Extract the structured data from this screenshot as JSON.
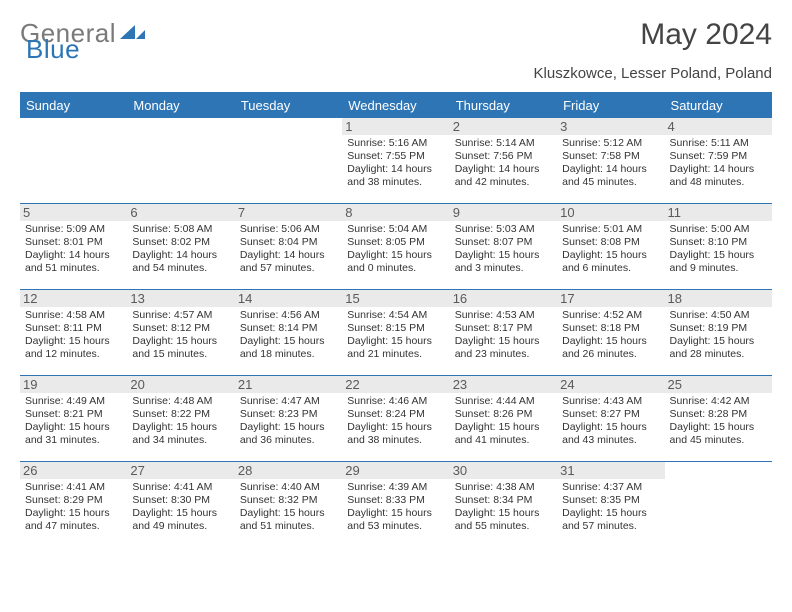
{
  "logo": {
    "text1": "General",
    "text2": "Blue"
  },
  "title": "May 2024",
  "location": "Kluszkowce, Lesser Poland, Poland",
  "colors": {
    "header_bg": "#2e75b6",
    "header_text": "#ffffff",
    "row_border": "#2e75b6",
    "daynum_bg": "#eaeaea",
    "body_text": "#333333",
    "title_text": "#444444"
  },
  "weekdays": [
    "Sunday",
    "Monday",
    "Tuesday",
    "Wednesday",
    "Thursday",
    "Friday",
    "Saturday"
  ],
  "weeks": [
    [
      null,
      null,
      null,
      {
        "n": "1",
        "sr": "5:16 AM",
        "ss": "7:55 PM",
        "dh": "14",
        "dm": "38"
      },
      {
        "n": "2",
        "sr": "5:14 AM",
        "ss": "7:56 PM",
        "dh": "14",
        "dm": "42"
      },
      {
        "n": "3",
        "sr": "5:12 AM",
        "ss": "7:58 PM",
        "dh": "14",
        "dm": "45"
      },
      {
        "n": "4",
        "sr": "5:11 AM",
        "ss": "7:59 PM",
        "dh": "14",
        "dm": "48"
      }
    ],
    [
      {
        "n": "5",
        "sr": "5:09 AM",
        "ss": "8:01 PM",
        "dh": "14",
        "dm": "51"
      },
      {
        "n": "6",
        "sr": "5:08 AM",
        "ss": "8:02 PM",
        "dh": "14",
        "dm": "54"
      },
      {
        "n": "7",
        "sr": "5:06 AM",
        "ss": "8:04 PM",
        "dh": "14",
        "dm": "57"
      },
      {
        "n": "8",
        "sr": "5:04 AM",
        "ss": "8:05 PM",
        "dh": "15",
        "dm": "0"
      },
      {
        "n": "9",
        "sr": "5:03 AM",
        "ss": "8:07 PM",
        "dh": "15",
        "dm": "3"
      },
      {
        "n": "10",
        "sr": "5:01 AM",
        "ss": "8:08 PM",
        "dh": "15",
        "dm": "6"
      },
      {
        "n": "11",
        "sr": "5:00 AM",
        "ss": "8:10 PM",
        "dh": "15",
        "dm": "9"
      }
    ],
    [
      {
        "n": "12",
        "sr": "4:58 AM",
        "ss": "8:11 PM",
        "dh": "15",
        "dm": "12"
      },
      {
        "n": "13",
        "sr": "4:57 AM",
        "ss": "8:12 PM",
        "dh": "15",
        "dm": "15"
      },
      {
        "n": "14",
        "sr": "4:56 AM",
        "ss": "8:14 PM",
        "dh": "15",
        "dm": "18"
      },
      {
        "n": "15",
        "sr": "4:54 AM",
        "ss": "8:15 PM",
        "dh": "15",
        "dm": "21"
      },
      {
        "n": "16",
        "sr": "4:53 AM",
        "ss": "8:17 PM",
        "dh": "15",
        "dm": "23"
      },
      {
        "n": "17",
        "sr": "4:52 AM",
        "ss": "8:18 PM",
        "dh": "15",
        "dm": "26"
      },
      {
        "n": "18",
        "sr": "4:50 AM",
        "ss": "8:19 PM",
        "dh": "15",
        "dm": "28"
      }
    ],
    [
      {
        "n": "19",
        "sr": "4:49 AM",
        "ss": "8:21 PM",
        "dh": "15",
        "dm": "31"
      },
      {
        "n": "20",
        "sr": "4:48 AM",
        "ss": "8:22 PM",
        "dh": "15",
        "dm": "34"
      },
      {
        "n": "21",
        "sr": "4:47 AM",
        "ss": "8:23 PM",
        "dh": "15",
        "dm": "36"
      },
      {
        "n": "22",
        "sr": "4:46 AM",
        "ss": "8:24 PM",
        "dh": "15",
        "dm": "38"
      },
      {
        "n": "23",
        "sr": "4:44 AM",
        "ss": "8:26 PM",
        "dh": "15",
        "dm": "41"
      },
      {
        "n": "24",
        "sr": "4:43 AM",
        "ss": "8:27 PM",
        "dh": "15",
        "dm": "43"
      },
      {
        "n": "25",
        "sr": "4:42 AM",
        "ss": "8:28 PM",
        "dh": "15",
        "dm": "45"
      }
    ],
    [
      {
        "n": "26",
        "sr": "4:41 AM",
        "ss": "8:29 PM",
        "dh": "15",
        "dm": "47"
      },
      {
        "n": "27",
        "sr": "4:41 AM",
        "ss": "8:30 PM",
        "dh": "15",
        "dm": "49"
      },
      {
        "n": "28",
        "sr": "4:40 AM",
        "ss": "8:32 PM",
        "dh": "15",
        "dm": "51"
      },
      {
        "n": "29",
        "sr": "4:39 AM",
        "ss": "8:33 PM",
        "dh": "15",
        "dm": "53"
      },
      {
        "n": "30",
        "sr": "4:38 AM",
        "ss": "8:34 PM",
        "dh": "15",
        "dm": "55"
      },
      {
        "n": "31",
        "sr": "4:37 AM",
        "ss": "8:35 PM",
        "dh": "15",
        "dm": "57"
      },
      null
    ]
  ],
  "labels": {
    "sunrise": "Sunrise:",
    "sunset": "Sunset:",
    "daylight": "Daylight:",
    "hours": "hours",
    "and": "and",
    "minutes": "minutes."
  }
}
